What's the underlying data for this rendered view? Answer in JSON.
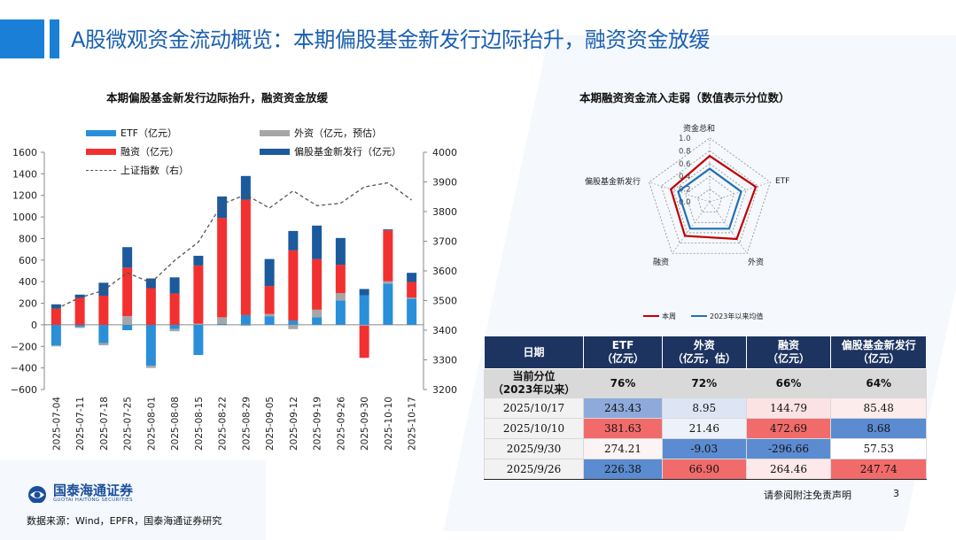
{
  "header": {
    "title": "A股微观资金流动概览：本期偏股基金新发行边际抬升，融资资金放缓"
  },
  "left_chart_title": "本期偏股基金新发行边际抬升，融资资金放缓",
  "right_chart_title": "本期融资资金流入走弱（数值表示分位数）",
  "legend": {
    "etf": "ETF（亿元）",
    "foreign": "外资（亿元，预估）",
    "margin": "融资（亿元）",
    "fund": "偏股基金新发行（亿元）",
    "index": "上证指数（右）"
  },
  "colors": {
    "etf": "#2a8fd8",
    "foreign": "#a6a6a6",
    "margin": "#f23030",
    "fund": "#1b5a9c",
    "index": "#555555",
    "current": "#c00000",
    "avg": "#1f6fb4"
  },
  "chart_data": [
    {
      "type": "bar",
      "stacked": true,
      "title": "本期偏股基金新发行边际抬升，融资资金放缓",
      "categories": [
        "2025-07-04",
        "2025-07-11",
        "2025-07-18",
        "2025-07-25",
        "2025-08-01",
        "2025-08-08",
        "2025-08-15",
        "2025-08-22",
        "2025-08-29",
        "2025-09-05",
        "2025-09-12",
        "2025-09-19",
        "2025-09-26",
        "2025-09-30",
        "2025-10-10",
        "2025-10-17"
      ],
      "y_ticks": [
        "1600",
        "1400",
        "1200",
        "1000",
        "800",
        "600",
        "400",
        "200",
        "0",
        "−200",
        "−400",
        "−600"
      ],
      "y2_ticks": [
        "4000",
        "3900",
        "3800",
        "3700",
        "3600",
        "3500",
        "3400",
        "3300",
        "3200"
      ],
      "ylim": [
        -600,
        1600
      ],
      "y2lim": [
        3200,
        4000
      ],
      "series": [
        {
          "name": "ETF（亿元）",
          "values": [
            -190,
            -20,
            -170,
            -50,
            -380,
            -40,
            -280,
            10,
            90,
            80,
            40,
            70,
            226,
            274,
            382,
            243
          ]
        },
        {
          "name": "外资（亿元，预估）",
          "values": [
            -10,
            -10,
            -20,
            80,
            -20,
            -20,
            10,
            60,
            -10,
            20,
            -40,
            70,
            67,
            -9,
            21,
            9
          ]
        },
        {
          "name": "融资（亿元）",
          "values": [
            150,
            250,
            270,
            450,
            340,
            290,
            540,
            920,
            1070,
            260,
            650,
            470,
            264,
            -297,
            473,
            145
          ]
        },
        {
          "name": "偏股基金新发行（亿元）",
          "values": [
            40,
            30,
            120,
            190,
            90,
            150,
            90,
            200,
            220,
            250,
            180,
            310,
            248,
            58,
            9,
            85
          ]
        },
        {
          "name": "上证指数（右）",
          "type": "line",
          "values": [
            3472,
            3510,
            3534,
            3594,
            3560,
            3635,
            3697,
            3825,
            3857,
            3812,
            3870,
            3820,
            3828,
            3883,
            3897,
            3839
          ]
        }
      ]
    },
    {
      "type": "radar",
      "title": "本期融资资金流入走弱（数值表示分位数）",
      "axes": [
        "资金总和",
        "ETF",
        "外资",
        "融资",
        "偏股基金新发行"
      ],
      "ticks": [
        "1.0",
        "0.8",
        "0.6",
        "0.4",
        "0.2",
        "0.0"
      ],
      "rlim": [
        0,
        1
      ],
      "series": [
        {
          "name": "本周",
          "values": [
            0.72,
            0.76,
            0.72,
            0.66,
            0.64
          ]
        },
        {
          "name": "2023年以来均值",
          "values": [
            0.52,
            0.52,
            0.52,
            0.52,
            0.52
          ]
        }
      ]
    }
  ],
  "table": {
    "headers": [
      "日期",
      "ETF\n（亿元）",
      "外资\n（亿元，估）",
      "融资\n（亿元）",
      "偏股基金新发行\n（亿元）"
    ],
    "pct_row": {
      "label": "当前分位\n（2023年以来）",
      "values": [
        "76%",
        "72%",
        "66%",
        "64%"
      ]
    },
    "rows": [
      {
        "date": "2025/10/17",
        "values": [
          "243.43",
          "8.95",
          "144.79",
          "85.48"
        ],
        "bg": [
          "#8eaadb",
          "#dde5f5",
          "#fbe3e3",
          "#fcecec"
        ]
      },
      {
        "date": "2025/10/10",
        "values": [
          "381.63",
          "21.46",
          "472.69",
          "8.68"
        ],
        "bg": [
          "#f26b6b",
          "#ecf1fa",
          "#f26b6b",
          "#5b8bd0"
        ]
      },
      {
        "date": "2025/9/30",
        "values": [
          "274.21",
          "-9.03",
          "-296.66",
          "57.53"
        ],
        "bg": [
          "#fcf4f4",
          "#5b8bd0",
          "#5b8bd0",
          "#ffffff"
        ]
      },
      {
        "date": "2025/9/26",
        "values": [
          "226.38",
          "66.90",
          "264.46",
          "247.74"
        ],
        "bg": [
          "#5b8bd0",
          "#f26b6b",
          "#fde9e9",
          "#f26b6b"
        ]
      }
    ]
  },
  "footer": {
    "logo_cn": "国泰海通证券",
    "logo_en": "GUOTAI HAITONG SECURITIES",
    "source": "数据来源：Wind，EPFR，国泰海通证券研究",
    "disclaimer": "请参阅附注免责声明",
    "page": "3"
  }
}
